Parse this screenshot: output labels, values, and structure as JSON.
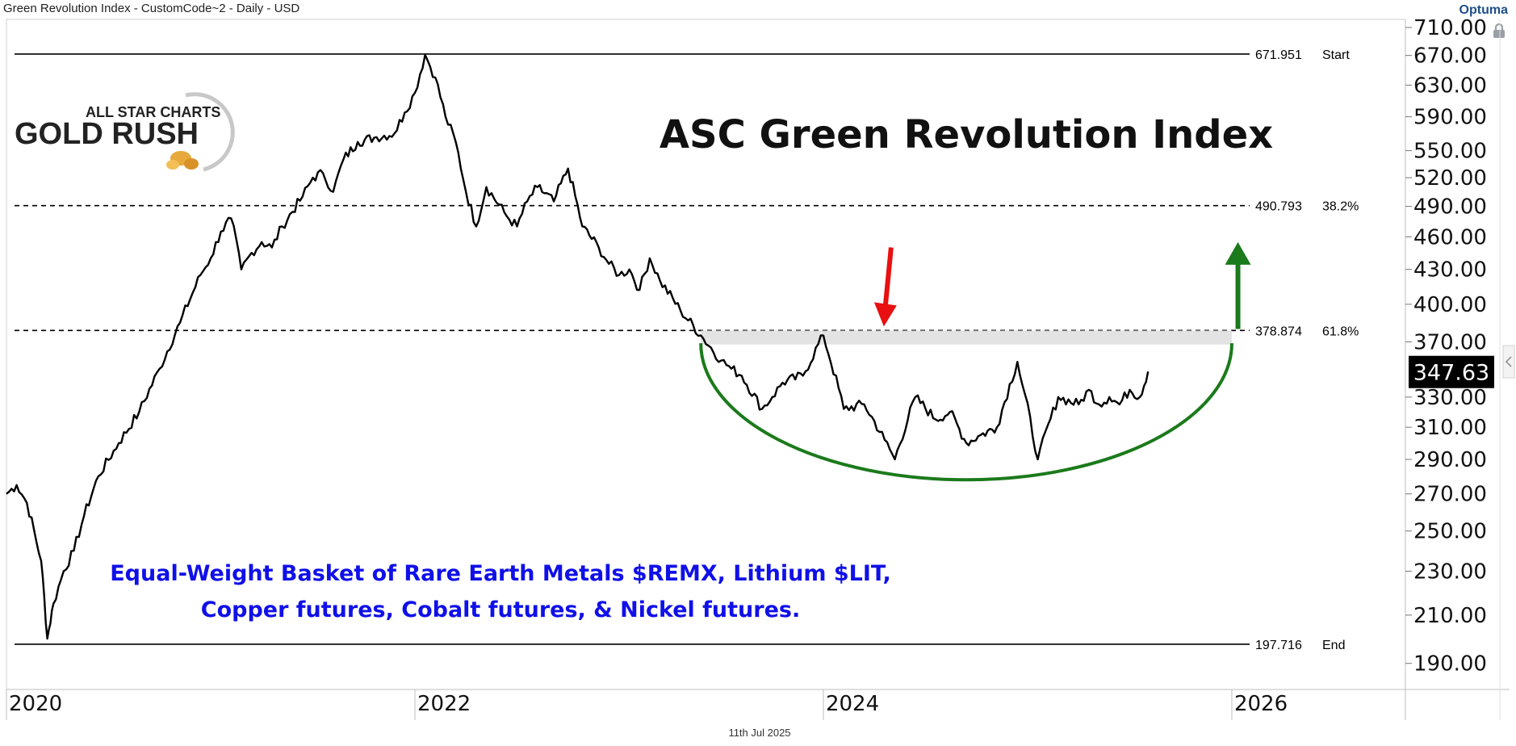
{
  "header": {
    "title": "Green Revolution Index - CustomCode~2 - Daily - USD",
    "brand": "Optuma"
  },
  "logo": {
    "line1": "ALL STAR CHARTS",
    "line2": "GOLD RUSH"
  },
  "chart_data": {
    "type": "line",
    "title": "ASC Green Revolution Index",
    "subtitle_lines": [
      "Equal-Weight Basket of Rare Earth Metals $REMX, Lithium $LIT,",
      "Copper futures, Cobalt futures, & Nickel futures."
    ],
    "date_label": "11th Jul 2025",
    "x_range": [
      2020.0,
      2026.85
    ],
    "ylim": [
      180,
      722
    ],
    "y_ticks": [
      710,
      670,
      630,
      590,
      550,
      520,
      490,
      460,
      430,
      400,
      370,
      330,
      310,
      290,
      270,
      250,
      230,
      210,
      190
    ],
    "x_ticks": [
      {
        "label": "2020",
        "year": 2020
      },
      {
        "label": "2022",
        "year": 2022
      },
      {
        "label": "2024",
        "year": 2024
      },
      {
        "label": "2026",
        "year": 2026
      }
    ],
    "last_value": "347.63",
    "series": [
      {
        "name": "Green Revolution Index",
        "x": [
          2020.0,
          2020.05,
          2020.1,
          2020.17,
          2020.2,
          2020.23,
          2020.28,
          2020.33,
          2020.38,
          2020.45,
          2020.55,
          2020.65,
          2020.75,
          2020.85,
          2020.95,
          2021.0,
          2021.05,
          2021.1,
          2021.15,
          2021.2,
          2021.25,
          2021.3,
          2021.35,
          2021.45,
          2021.5,
          2021.55,
          2021.6,
          2021.65,
          2021.72,
          2021.8,
          2021.9,
          2021.95,
          2022.0,
          2022.05,
          2022.1,
          2022.15,
          2022.2,
          2022.25,
          2022.3,
          2022.35,
          2022.45,
          2022.5,
          2022.55,
          2022.6,
          2022.68,
          2022.75,
          2022.82,
          2022.9,
          2022.95,
          2023.0,
          2023.05,
          2023.1,
          2023.15,
          2023.2,
          2023.3,
          2023.4,
          2023.5,
          2023.55,
          2023.6,
          2023.7,
          2023.75,
          2023.8,
          2023.9,
          2024.0,
          2024.1,
          2024.2,
          2024.3,
          2024.35,
          2024.45,
          2024.55,
          2024.62,
          2024.7,
          2024.77,
          2024.85,
          2024.95,
          2025.05,
          2025.15,
          2025.25,
          2025.3,
          2025.35,
          2025.4,
          2025.45,
          2025.5,
          2025.55,
          2025.59
        ],
        "values": [
          270,
          275,
          265,
          235,
          200,
          215,
          230,
          240,
          258,
          280,
          300,
          320,
          350,
          385,
          425,
          440,
          465,
          478,
          430,
          445,
          455,
          450,
          470,
          500,
          520,
          525,
          505,
          540,
          560,
          565,
          570,
          595,
          620,
          671,
          640,
          590,
          560,
          505,
          470,
          510,
          480,
          470,
          495,
          510,
          495,
          530,
          470,
          450,
          435,
          425,
          430,
          412,
          440,
          420,
          395,
          375,
          356,
          350,
          345,
          322,
          330,
          340,
          345,
          375,
          322,
          325,
          302,
          290,
          330,
          315,
          320,
          300,
          305,
          310,
          355,
          290,
          330,
          325,
          335,
          325,
          330,
          325,
          335,
          330,
          348
        ]
      }
    ],
    "levels": [
      {
        "value": 671.951,
        "label": "671.951",
        "tag": "Start",
        "style": "solid"
      },
      {
        "value": 490.793,
        "label": "490.793",
        "tag": "38.2%",
        "style": "dashed"
      },
      {
        "value": 378.874,
        "label": "378.874",
        "tag": "61.8%",
        "style": "dashed"
      },
      {
        "value": 197.716,
        "label": "197.716",
        "tag": "End",
        "style": "solid"
      }
    ],
    "annotations": {
      "zone": {
        "from": 368,
        "to": 378.874,
        "x_start": 2023.4,
        "x_end": 2026.0
      },
      "bowl": {
        "x_start": 2023.4,
        "x_end": 2026.0,
        "top": 369,
        "bottom": 278
      },
      "red_arrow": {
        "x": 2024.3,
        "y_from": 450,
        "y_to": 382
      },
      "green_arrow": {
        "x": 2026.03,
        "y_from": 380,
        "y_to": 455
      }
    },
    "colors": {
      "series": "#000000",
      "title": "#111111",
      "subtitle": "#1010e8",
      "bowl": "#1b7a1b",
      "red_arrow": "#e81010",
      "green_arrow": "#1b7a1b",
      "zone": "#d9d9d9",
      "last_value_bg": "#000000"
    }
  }
}
